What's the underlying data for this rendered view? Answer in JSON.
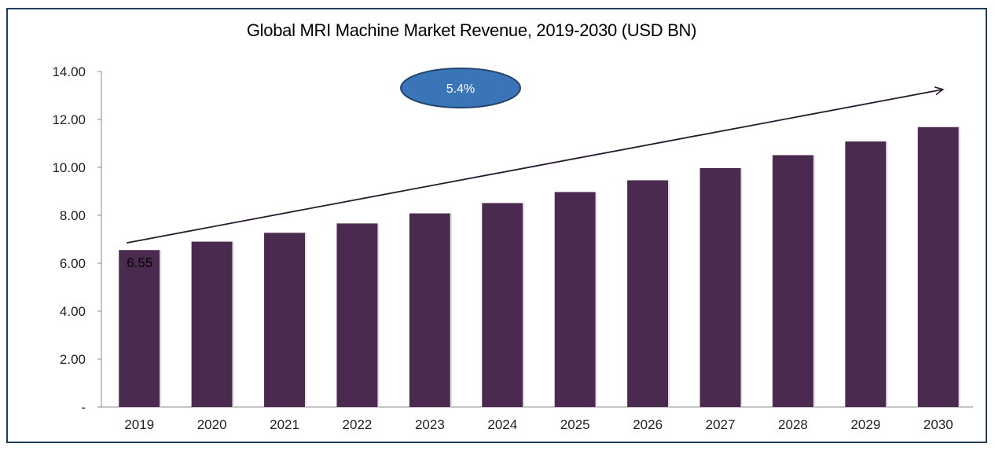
{
  "chart_data": {
    "type": "bar",
    "title": "Global MRI Machine Market Revenue, 2019-2030 (USD BN)",
    "categories": [
      "2019",
      "2020",
      "2021",
      "2022",
      "2023",
      "2024",
      "2025",
      "2026",
      "2027",
      "2028",
      "2029",
      "2030"
    ],
    "values": [
      6.55,
      6.9,
      7.27,
      7.66,
      8.08,
      8.51,
      8.97,
      9.46,
      9.97,
      10.51,
      11.08,
      11.68
    ],
    "ylim": [
      0,
      14
    ],
    "yticks": [
      "-",
      "2.00",
      "4.00",
      "6.00",
      "8.00",
      "10.00",
      "12.00",
      "14.00"
    ],
    "data_labels": [
      {
        "index": 0,
        "text": "6.55"
      }
    ],
    "annotation": {
      "text": "5.4%",
      "fill": "#3a75b8",
      "stroke": "#23466e"
    },
    "trend_arrow": {
      "from_value": 6.85,
      "to_value": 13.25
    },
    "bar_color": "#4b2a4f",
    "grid": false,
    "legend": "none"
  }
}
